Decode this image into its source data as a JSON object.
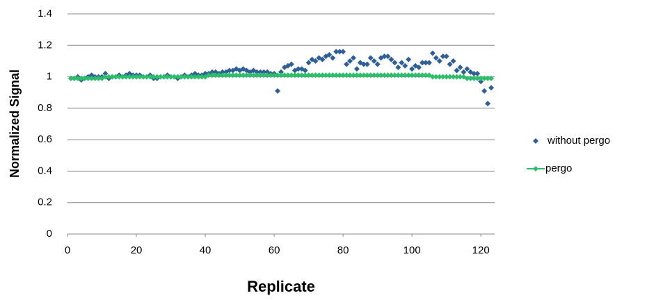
{
  "chart_data": {
    "type": "scatter",
    "x_label": "Replicate",
    "y_label": "Normalized Signal",
    "x": [
      1,
      2,
      3,
      4,
      5,
      6,
      7,
      8,
      9,
      10,
      11,
      12,
      13,
      14,
      15,
      16,
      17,
      18,
      19,
      20,
      21,
      22,
      23,
      24,
      25,
      26,
      27,
      28,
      29,
      30,
      31,
      32,
      33,
      34,
      35,
      36,
      37,
      38,
      39,
      40,
      41,
      42,
      43,
      44,
      45,
      46,
      47,
      48,
      49,
      50,
      51,
      52,
      53,
      54,
      55,
      56,
      57,
      58,
      59,
      60,
      61,
      62,
      63,
      64,
      65,
      66,
      67,
      68,
      69,
      70,
      71,
      72,
      73,
      74,
      75,
      76,
      77,
      78,
      79,
      80,
      81,
      82,
      83,
      84,
      85,
      86,
      87,
      88,
      89,
      90,
      91,
      92,
      93,
      94,
      95,
      96,
      97,
      98,
      99,
      100,
      101,
      102,
      103,
      104,
      105,
      106,
      107,
      108,
      109,
      110,
      111,
      112,
      113,
      114,
      115,
      116,
      117,
      118,
      119,
      120,
      121,
      122,
      123
    ],
    "series": [
      {
        "name": "without pergo",
        "color": "#2e5f96",
        "marker": "diamond",
        "line": false,
        "values": [
          0.99,
          0.99,
          1.0,
          0.98,
          0.99,
          1.0,
          1.01,
          1.0,
          1.0,
          1.0,
          1.02,
          0.99,
          1.0,
          1.0,
          1.01,
          1.0,
          1.01,
          1.02,
          1.01,
          1.01,
          1.01,
          1.0,
          1.0,
          1.01,
          0.99,
          0.99,
          1.0,
          1.0,
          1.01,
          1.0,
          1.0,
          0.99,
          1.0,
          1.01,
          1.0,
          1.01,
          1.02,
          1.01,
          1.01,
          1.02,
          1.02,
          1.03,
          1.03,
          1.02,
          1.03,
          1.03,
          1.04,
          1.04,
          1.05,
          1.04,
          1.05,
          1.04,
          1.03,
          1.04,
          1.03,
          1.03,
          1.03,
          1.03,
          1.02,
          1.02,
          0.91,
          1.03,
          1.06,
          1.07,
          1.08,
          1.04,
          1.05,
          1.05,
          1.04,
          1.09,
          1.11,
          1.1,
          1.12,
          1.11,
          1.13,
          1.14,
          1.12,
          1.16,
          1.16,
          1.16,
          1.08,
          1.1,
          1.12,
          1.05,
          1.09,
          1.08,
          1.08,
          1.12,
          1.1,
          1.08,
          1.12,
          1.13,
          1.13,
          1.11,
          1.09,
          1.06,
          1.09,
          1.07,
          1.11,
          1.05,
          1.07,
          1.06,
          1.09,
          1.09,
          1.09,
          1.15,
          1.12,
          1.1,
          1.13,
          1.13,
          1.08,
          1.1,
          1.04,
          1.06,
          1.03,
          1.05,
          1.03,
          1.02,
          1.02,
          0.97,
          0.91,
          0.83,
          0.93
        ]
      },
      {
        "name": "pergo",
        "color": "#2dbe6c",
        "marker": "diamond",
        "line": true,
        "values": [
          0.99,
          0.99,
          0.99,
          0.99,
          0.99,
          0.99,
          0.99,
          0.99,
          0.99,
          0.99,
          1.0,
          1.0,
          1.0,
          1.0,
          1.0,
          1.0,
          1.0,
          1.0,
          1.0,
          1.0,
          1.0,
          1.0,
          1.0,
          1.0,
          1.0,
          1.0,
          1.0,
          1.0,
          1.0,
          1.0,
          1.0,
          1.0,
          1.0,
          1.0,
          1.0,
          1.0,
          1.0,
          1.0,
          1.0,
          1.0,
          1.01,
          1.01,
          1.01,
          1.01,
          1.01,
          1.01,
          1.01,
          1.01,
          1.01,
          1.01,
          1.01,
          1.01,
          1.01,
          1.01,
          1.01,
          1.01,
          1.01,
          1.01,
          1.01,
          1.01,
          1.01,
          1.01,
          1.01,
          1.01,
          1.01,
          1.01,
          1.01,
          1.01,
          1.01,
          1.01,
          1.01,
          1.01,
          1.01,
          1.01,
          1.01,
          1.01,
          1.01,
          1.01,
          1.01,
          1.01,
          1.01,
          1.01,
          1.01,
          1.01,
          1.01,
          1.01,
          1.01,
          1.01,
          1.01,
          1.01,
          1.01,
          1.01,
          1.01,
          1.01,
          1.01,
          1.01,
          1.01,
          1.01,
          1.01,
          1.01,
          1.01,
          1.01,
          1.01,
          1.01,
          1.01,
          1.0,
          1.0,
          1.0,
          1.0,
          1.0,
          1.0,
          1.0,
          1.0,
          1.0,
          1.0,
          0.99,
          0.99,
          0.99,
          0.99,
          0.99,
          0.99,
          0.99,
          0.99
        ]
      }
    ],
    "xlim": [
      0,
      124
    ],
    "xticks": [
      0,
      20,
      40,
      60,
      80,
      100,
      120
    ],
    "ylim": [
      0,
      1.4
    ],
    "yticks": [
      0,
      0.2,
      0.4,
      0.6,
      0.8,
      1,
      1.2,
      1.4
    ],
    "grid": true,
    "legend": "right"
  }
}
